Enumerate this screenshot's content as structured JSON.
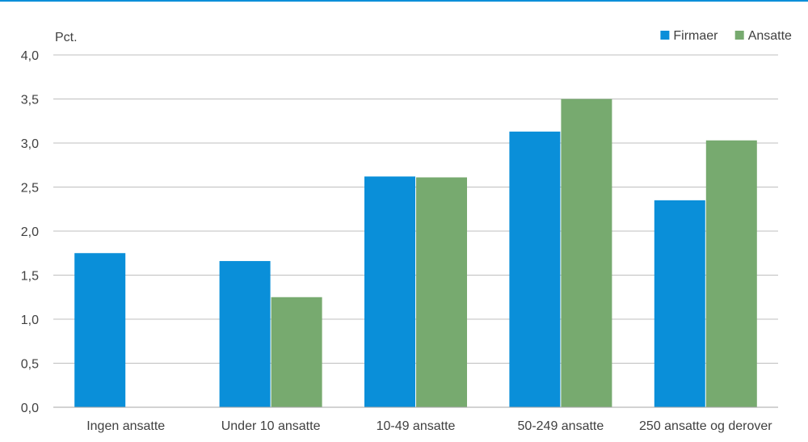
{
  "chart_data": {
    "type": "bar",
    "ylabel": "Pct.",
    "ylim": [
      0,
      4
    ],
    "yticks": [
      "0,0",
      "0,5",
      "1,0",
      "1,5",
      "2,0",
      "2,5",
      "3,0",
      "3,5",
      "4,0"
    ],
    "categories": [
      "Ingen ansatte",
      "Under 10 ansatte",
      "10-49 ansatte",
      "50-249 ansatte",
      "250 ansatte og derover"
    ],
    "series": [
      {
        "name": "Firmaer",
        "color": "#0a8fd9",
        "values": [
          1.75,
          1.66,
          2.62,
          3.13,
          2.35
        ]
      },
      {
        "name": "Ansatte",
        "color": "#77aa6f",
        "values": [
          null,
          1.25,
          2.61,
          3.5,
          3.03
        ]
      }
    ],
    "grid": true,
    "legend_position": "top-right",
    "accent_color": "#0a8fd9",
    "gridline_color": "#bfbfbf",
    "axis_color": "#a6a6a6"
  }
}
